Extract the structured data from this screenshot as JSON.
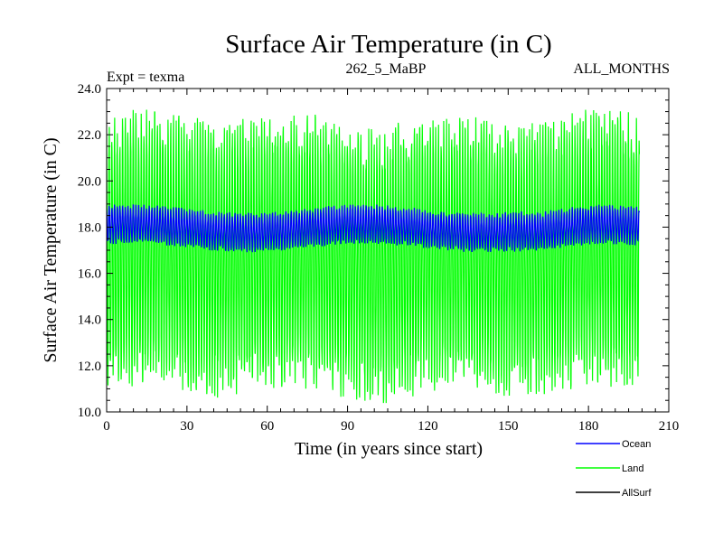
{
  "chart_data": {
    "type": "line",
    "title": "Surface Air Temperature (in C)",
    "subtitle_left": "Expt = texma",
    "subtitle_center": "262_5_MaBP",
    "subtitle_right": "ALL_MONTHS",
    "xlabel": "Time (in years since start)",
    "ylabel": "Surface Air Temperature (in C)",
    "xlim": [
      0,
      210
    ],
    "ylim": [
      10.0,
      24.0
    ],
    "x_ticks": [
      "0",
      "30",
      "60",
      "90",
      "120",
      "150",
      "180",
      "210"
    ],
    "y_ticks": [
      "10.0",
      "12.0",
      "14.0",
      "16.0",
      "18.0",
      "20.0",
      "22.0",
      "24.0"
    ],
    "x_tick_values": [
      0,
      30,
      60,
      90,
      120,
      150,
      180,
      210
    ],
    "y_tick_values": [
      10,
      12,
      14,
      16,
      18,
      20,
      22,
      24
    ],
    "data_end_year": 199,
    "series": [
      {
        "name": "Land",
        "color": "#00ff00",
        "pattern": "monthly seasonal cycle",
        "typical_max": 22.0,
        "typical_min": 11.5,
        "extreme_max": 23.1,
        "extreme_min": 10.2
      },
      {
        "name": "Ocean",
        "color": "#0000ff",
        "pattern": "monthly seasonal cycle",
        "typical_max": 18.7,
        "typical_min": 17.2,
        "extreme_max": 19.1,
        "extreme_min": 16.9
      },
      {
        "name": "AllSurf",
        "color": "#000000",
        "pattern": "not visible",
        "typical_max": null,
        "typical_min": null
      }
    ],
    "legend": [
      {
        "label": "Ocean",
        "color": "#0000ff"
      },
      {
        "label": "Land",
        "color": "#00ff00"
      },
      {
        "label": "AllSurf",
        "color": "#000000"
      }
    ]
  }
}
